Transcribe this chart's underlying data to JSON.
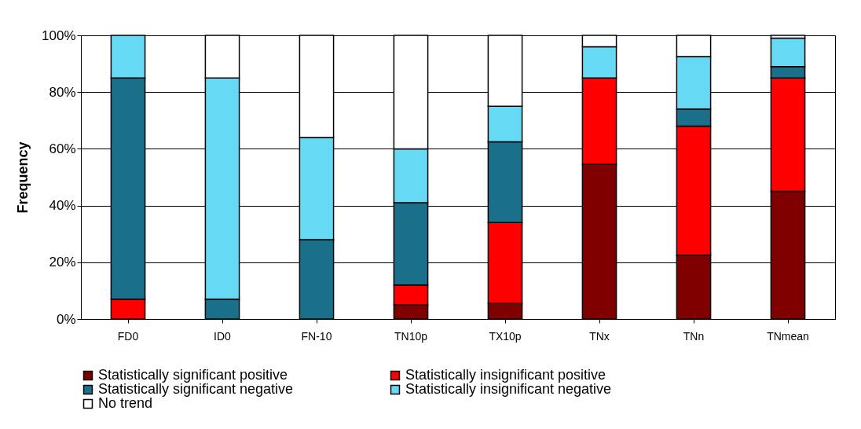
{
  "chart_data": {
    "type": "bar",
    "stacked": true,
    "ylabel": "Frequency",
    "categories": [
      "FD0",
      "ID0",
      "FN-10",
      "TN10p",
      "TX10p",
      "TNx",
      "TNn",
      "TNmean"
    ],
    "series": [
      {
        "name": "Statistically significant positive",
        "color": "#800000",
        "values": [
          0,
          0,
          0,
          5,
          5.5,
          54.5,
          22.5,
          45
        ]
      },
      {
        "name": "Statistically insignificant positive",
        "color": "#ff0000",
        "values": [
          7,
          0,
          0,
          7,
          28.5,
          30.5,
          45.5,
          40
        ]
      },
      {
        "name": "Statistically significant negative",
        "color": "#1a6f8a",
        "values": [
          78,
          7,
          28,
          29,
          28.5,
          0,
          6,
          4
        ]
      },
      {
        "name": "Statistically insignificant negative",
        "color": "#66d9f5",
        "values": [
          15,
          78,
          36,
          19,
          12.5,
          11,
          18.5,
          10
        ]
      },
      {
        "name": "No trend",
        "color": "#ffffff",
        "values": [
          0,
          15,
          36,
          40,
          25,
          4,
          7.5,
          1
        ]
      }
    ],
    "ylim": [
      0,
      100
    ],
    "yticks": [
      {
        "value": 0,
        "label": "0%"
      },
      {
        "value": 20,
        "label": "20%"
      },
      {
        "value": 40,
        "label": "40%"
      },
      {
        "value": 60,
        "label": "60%"
      },
      {
        "value": 80,
        "label": "80%"
      },
      {
        "value": 100,
        "label": "100%"
      }
    ],
    "grid": "y",
    "legend": "bottom"
  }
}
